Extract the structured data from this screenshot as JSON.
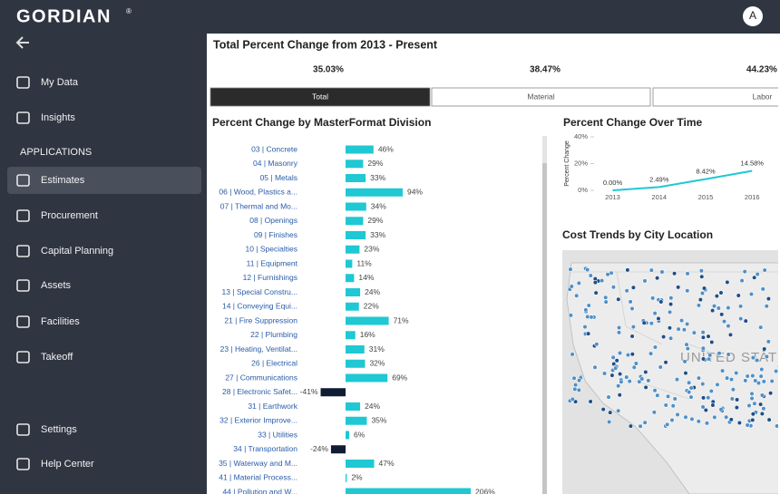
{
  "header": {
    "logo": "GORDIAN",
    "logo_mark": "®",
    "avatar": "A"
  },
  "sidebar": {
    "items": [
      "My Data",
      "Insights"
    ],
    "section": "APPLICATIONS",
    "apps": [
      "Estimates",
      "Procurement",
      "Capital Planning",
      "Assets",
      "Facilities",
      "Takeoff"
    ],
    "footer": [
      "Settings",
      "Help Center"
    ]
  },
  "summary": {
    "title": "Total Percent Change from 2013 - Present",
    "values": [
      "35.03%",
      "38.47%",
      "44.23%"
    ],
    "tabs": [
      "Total",
      "Material",
      "Labor"
    ]
  },
  "chart_data": [
    {
      "type": "bar",
      "orientation": "horizontal",
      "title": "Percent Change by MasterFormat Division",
      "categories": [
        "03 | Concrete",
        "04 | Masonry",
        "05 | Metals",
        "06 | Wood, Plastics a...",
        "07 | Thermal and Mo...",
        "08 | Openings",
        "09 | Finishes",
        "10 | Specialties",
        "11 | Equipment",
        "12 | Furnishings",
        "13 | Special Constru...",
        "14 | Conveying Equi...",
        "21 | Fire Suppression",
        "22 | Plumbing",
        "23 | Heating, Ventilat...",
        "26 | Electrical",
        "27 | Communications",
        "28 | Electronic Safet...",
        "31 | Earthwork",
        "32 | Exterior Improve...",
        "33 | Utilities",
        "34 | Transportation",
        "35 | Waterway and M...",
        "41 | Material Process...",
        "44 | Pollution and W..."
      ],
      "values": [
        46,
        29,
        33,
        94,
        34,
        29,
        33,
        23,
        11,
        14,
        24,
        22,
        71,
        16,
        31,
        32,
        69,
        -41,
        24,
        35,
        6,
        -24,
        47,
        2,
        206
      ],
      "value_labels": [
        "46%",
        "29%",
        "33%",
        "94%",
        "34%",
        "29%",
        "33%",
        "23%",
        "11%",
        "14%",
        "24%",
        "22%",
        "71%",
        "16%",
        "31%",
        "32%",
        "69%",
        "-41%",
        "24%",
        "35%",
        "6%",
        "-24%",
        "47%",
        "2%",
        "206%"
      ],
      "color": "#1fc8d3",
      "negative_color": "#0f1c33"
    },
    {
      "type": "line",
      "title": "Percent Change Over Time",
      "ylabel": "Percent Change",
      "x": [
        2013,
        2014,
        2015,
        2016
      ],
      "values": [
        0,
        2.49,
        8.42,
        14.58
      ],
      "value_labels": [
        "0.00%",
        "2.49%",
        "8.42%",
        "14.58%"
      ],
      "xlim": [
        2012.6,
        2016.6
      ],
      "xticks": [
        2013,
        2014,
        2015,
        2016
      ],
      "ylim": [
        0,
        40
      ],
      "yticks": [
        {
          "value": 0,
          "label": "0%"
        },
        {
          "value": 20,
          "label": "20%"
        },
        {
          "value": 40,
          "label": "40%"
        }
      ],
      "color": "#1fc8d3"
    }
  ],
  "map": {
    "title": "Cost Trends by City Location",
    "label": "UNITED STATES"
  }
}
